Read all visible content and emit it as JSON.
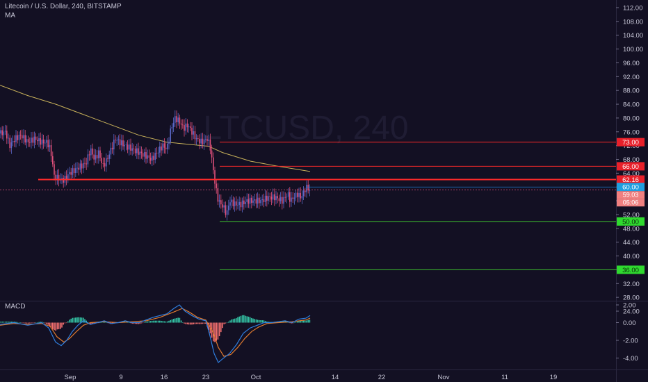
{
  "header": {
    "title": "Litecoin / U.S. Dollar, 240, BITSTAMP",
    "indicator_ma": "MA",
    "watermark": "LTCUSD, 240"
  },
  "macd_panel": {
    "label": "MACD"
  },
  "colors": {
    "background": "#131023",
    "up": "#5b68c8",
    "down": "#e0507a",
    "ma": "#c9b25a",
    "red_line": "#ff2a2a",
    "green_line": "#3fbf2f",
    "macd": "#2f7fe0",
    "signal": "#e07a2f",
    "hist_pos": "#33c2a4",
    "hist_neg": "#f26f6f"
  },
  "chart_data": [
    {
      "type": "candlestick",
      "title": "Litecoin / U.S. Dollar, 240, BITSTAMP",
      "ylim": [
        20,
        114
      ],
      "y_ticks": [
        "112.00",
        "108.00",
        "104.00",
        "100.00",
        "96.00",
        "92.00",
        "88.00",
        "84.00",
        "80.00",
        "76.00",
        "72.00",
        "68.00",
        "64.00",
        "60.00",
        "56.00",
        "52.00",
        "48.00",
        "44.00",
        "40.00",
        "36.00",
        "32.00",
        "28.00",
        "24.00"
      ],
      "x_ticks": [
        "Sep",
        "9",
        "16",
        "23",
        "Oct",
        "14",
        "22",
        "Nov",
        "11",
        "19"
      ],
      "price_path": [
        [
          0,
          75.5
        ],
        [
          8,
          76
        ],
        [
          14,
          72
        ],
        [
          22,
          74
        ],
        [
          30,
          75
        ],
        [
          40,
          73
        ],
        [
          50,
          74
        ],
        [
          60,
          73
        ],
        [
          68,
          73
        ],
        [
          72,
          71
        ],
        [
          75,
          68
        ],
        [
          78,
          63
        ],
        [
          84,
          62.5
        ],
        [
          92,
          62
        ],
        [
          100,
          64
        ],
        [
          108,
          65
        ],
        [
          116,
          66
        ],
        [
          124,
          67
        ],
        [
          130,
          71
        ],
        [
          136,
          68
        ],
        [
          142,
          70
        ],
        [
          148,
          66
        ],
        [
          154,
          68
        ],
        [
          160,
          71
        ],
        [
          166,
          74
        ],
        [
          172,
          73
        ],
        [
          180,
          72
        ],
        [
          190,
          71
        ],
        [
          200,
          70
        ],
        [
          210,
          69
        ],
        [
          218,
          68
        ],
        [
          226,
          70
        ],
        [
          234,
          72
        ],
        [
          240,
          71
        ],
        [
          246,
          77
        ],
        [
          252,
          80
        ],
        [
          258,
          79
        ],
        [
          264,
          77
        ],
        [
          270,
          78
        ],
        [
          276,
          76
        ],
        [
          282,
          74
        ],
        [
          290,
          73
        ],
        [
          298,
          74
        ],
        [
          302,
          72
        ],
        [
          306,
          66
        ],
        [
          310,
          60
        ],
        [
          314,
          56
        ],
        [
          318,
          55
        ],
        [
          322,
          54
        ],
        [
          326,
          52
        ],
        [
          330,
          56
        ],
        [
          338,
          55
        ],
        [
          346,
          55
        ],
        [
          356,
          56
        ],
        [
          366,
          56
        ],
        [
          376,
          56
        ],
        [
          386,
          57
        ],
        [
          396,
          57
        ],
        [
          406,
          56
        ],
        [
          414,
          58
        ],
        [
          418,
          56
        ],
        [
          422,
          57
        ],
        [
          428,
          58
        ],
        [
          432,
          57
        ],
        [
          436,
          58
        ],
        [
          440,
          60
        ],
        [
          446,
          59
        ]
      ],
      "moving_average": [
        [
          0,
          89.5
        ],
        [
          40,
          86.5
        ],
        [
          80,
          84
        ],
        [
          120,
          81
        ],
        [
          160,
          78
        ],
        [
          200,
          75
        ],
        [
          240,
          73
        ],
        [
          280,
          72.2
        ],
        [
          300,
          71.8
        ],
        [
          320,
          70
        ],
        [
          360,
          67.5
        ],
        [
          400,
          66
        ],
        [
          446,
          64.5
        ]
      ],
      "horizontal_levels": [
        {
          "price": 73.0,
          "label": "73.00",
          "color": "red",
          "from_x": 316,
          "width": 1
        },
        {
          "price": 66.0,
          "label": "66.00",
          "color": "red",
          "from_x": 316,
          "width": 1
        },
        {
          "price": 62.16,
          "label": "62.16",
          "color": "red",
          "from_x": 55,
          "width": 2
        },
        {
          "price": 50.0,
          "label": "50.00",
          "color": "green",
          "from_x": 316,
          "width": 1
        },
        {
          "price": 36.0,
          "label": "36.00",
          "color": "green",
          "from_x": 316,
          "width": 1
        }
      ],
      "current_price": {
        "price": 60.0,
        "label": "60.00"
      },
      "price_tags": [
        {
          "label": "59.03",
          "color": "#f08080"
        },
        {
          "label": "05:06",
          "color": "#f08080"
        }
      ]
    },
    {
      "type": "line",
      "title": "MACD",
      "ylim": [
        -5,
        2.5
      ],
      "y_ticks": [
        "2.00",
        "0.00",
        "-2.00",
        "-4.00"
      ],
      "macd_path": [
        [
          0,
          -0.2
        ],
        [
          20,
          0
        ],
        [
          40,
          -0.3
        ],
        [
          60,
          0
        ],
        [
          70,
          -0.6
        ],
        [
          80,
          -2.2
        ],
        [
          88,
          -2.6
        ],
        [
          96,
          -2.0
        ],
        [
          104,
          -1.0
        ],
        [
          112,
          -0.3
        ],
        [
          120,
          0.2
        ],
        [
          130,
          -0.2
        ],
        [
          140,
          0
        ],
        [
          150,
          0.2
        ],
        [
          160,
          -0.1
        ],
        [
          170,
          0
        ],
        [
          180,
          0.2
        ],
        [
          190,
          0
        ],
        [
          200,
          0
        ],
        [
          210,
          0.3
        ],
        [
          220,
          0.6
        ],
        [
          230,
          0.8
        ],
        [
          240,
          1.0
        ],
        [
          250,
          1.6
        ],
        [
          258,
          2.0
        ],
        [
          266,
          1.3
        ],
        [
          276,
          0.8
        ],
        [
          286,
          0.4
        ],
        [
          296,
          0.2
        ],
        [
          302,
          -1.5
        ],
        [
          308,
          -3.5
        ],
        [
          314,
          -4.5
        ],
        [
          320,
          -4.1
        ],
        [
          330,
          -3.5
        ],
        [
          340,
          -2.5
        ],
        [
          350,
          -1.2
        ],
        [
          360,
          -0.6
        ],
        [
          370,
          -0.3
        ],
        [
          380,
          0
        ],
        [
          390,
          0
        ],
        [
          400,
          0.1
        ],
        [
          410,
          0.2
        ],
        [
          420,
          0
        ],
        [
          430,
          0.4
        ],
        [
          440,
          0.5
        ],
        [
          446,
          0.8
        ]
      ],
      "signal_path": [
        [
          0,
          -0.3
        ],
        [
          20,
          -0.1
        ],
        [
          40,
          -0.2
        ],
        [
          60,
          -0.1
        ],
        [
          72,
          -0.4
        ],
        [
          82,
          -1.6
        ],
        [
          92,
          -2.2
        ],
        [
          100,
          -1.8
        ],
        [
          110,
          -1.0
        ],
        [
          120,
          -0.3
        ],
        [
          130,
          0
        ],
        [
          150,
          0.1
        ],
        [
          170,
          0
        ],
        [
          190,
          0.1
        ],
        [
          210,
          0.2
        ],
        [
          230,
          0.6
        ],
        [
          250,
          1.2
        ],
        [
          262,
          1.6
        ],
        [
          272,
          1.2
        ],
        [
          284,
          0.6
        ],
        [
          296,
          0.3
        ],
        [
          306,
          -1.0
        ],
        [
          314,
          -2.8
        ],
        [
          322,
          -3.8
        ],
        [
          332,
          -3.6
        ],
        [
          342,
          -2.8
        ],
        [
          352,
          -1.8
        ],
        [
          362,
          -1.0
        ],
        [
          372,
          -0.5
        ],
        [
          384,
          -0.1
        ],
        [
          400,
          0
        ],
        [
          420,
          0.1
        ],
        [
          440,
          0.3
        ],
        [
          446,
          0.5
        ]
      ]
    }
  ]
}
